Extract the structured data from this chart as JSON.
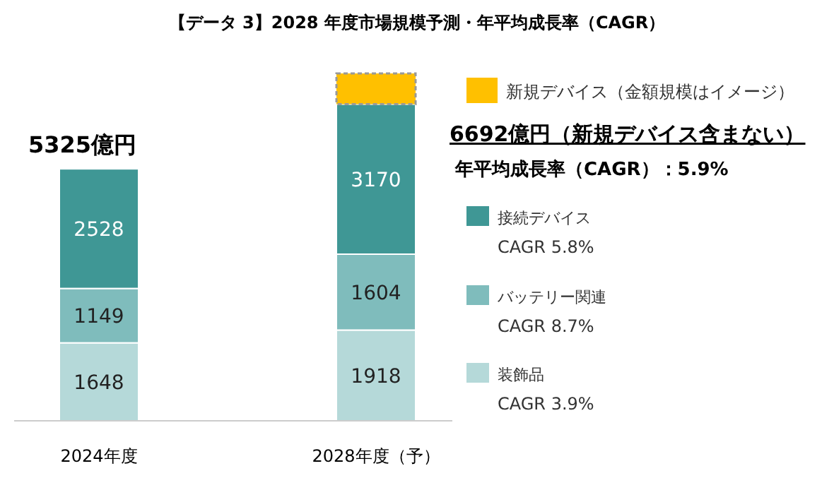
{
  "chart_data": {
    "type": "bar",
    "stacked": true,
    "relative": false,
    "title": "【データ 3】2028 年度市場規模予測・年平均成長率（CAGR）",
    "categories": [
      "2024年度",
      "2028年度（予）"
    ],
    "series": [
      {
        "name": "装飾品",
        "color": "#b5d9d9",
        "values": [
          1648,
          1918
        ],
        "value_labels": [
          "1648",
          "1918"
        ]
      },
      {
        "name": "バッテリー関連",
        "color": "#7fbcbc",
        "values": [
          1149,
          1604
        ],
        "value_labels": [
          "1149",
          "1604"
        ]
      },
      {
        "name": "接続デバイス",
        "color": "#3f9795",
        "values": [
          2528,
          3170
        ],
        "value_labels": [
          "2528",
          "3170"
        ]
      },
      {
        "name": "新規デバイス（金額規模はイメージ）",
        "color": "#ffc000",
        "values": [
          null,
          650
        ],
        "line_style": "dashed"
      }
    ],
    "annotations": [
      "5325億円",
      "6692億円（新規デバイス含まない）",
      "年平均成長率（CAGR）：5.9%",
      "CAGR 3.9%",
      "CAGR 8.7%",
      "CAGR 5.8%"
    ],
    "legend": "right"
  }
}
